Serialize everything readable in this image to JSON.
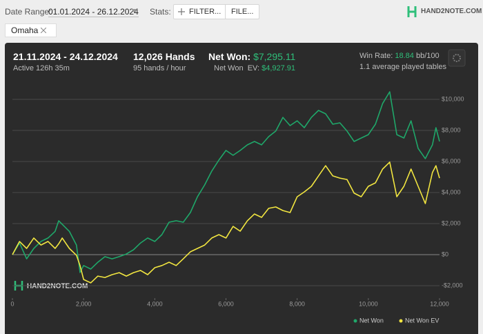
{
  "toolbar": {
    "date_range_label": "Date Range:",
    "date_range": "01.01.2024 - 26.12.2024",
    "stats_label": "Stats:",
    "filter_button": "FILTER...",
    "file_button": "FILE...",
    "logo": "HAND2NOTE.COM"
  },
  "filter_tag": "Omaha",
  "summary": {
    "period": "21.11.2024 - 24.12.2024",
    "active": "Active 126h 35m",
    "hands": "12,026 Hands",
    "hands_rate": "95 hands / hour",
    "net_won_label": "Net Won:",
    "net_won": "$7,295.11",
    "net_won_ev_label": "Net Won  EV:",
    "net_won_ev": "$4,927.91",
    "win_rate_label": "Win Rate:",
    "win_rate": "18.84",
    "win_rate_unit": "bb/100",
    "tables": "1.1 average played tables"
  },
  "chart_data": {
    "type": "line",
    "watermark": "HAND2NOTE.COM",
    "x": [
      0,
      200,
      400,
      600,
      800,
      1000,
      1200,
      1300,
      1400,
      1600,
      1800,
      1900,
      2000,
      2200,
      2400,
      2600,
      2800,
      3000,
      3200,
      3400,
      3600,
      3800,
      4000,
      4200,
      4400,
      4600,
      4800,
      5000,
      5200,
      5400,
      5600,
      5800,
      6000,
      6200,
      6400,
      6600,
      6800,
      7000,
      7200,
      7400,
      7600,
      7800,
      8000,
      8200,
      8400,
      8600,
      8800,
      9000,
      9200,
      9400,
      9600,
      9800,
      10000,
      10200,
      10400,
      10600,
      10800,
      11000,
      11200,
      11400,
      11600,
      11800,
      11900,
      12000
    ],
    "series": [
      {
        "name": "Net Won",
        "color": "#1fa86a",
        "values": [
          0,
          750,
          -270,
          400,
          850,
          1070,
          1500,
          2180,
          1950,
          1500,
          620,
          -1150,
          -700,
          -930,
          -490,
          -130,
          -270,
          -130,
          40,
          310,
          750,
          1070,
          850,
          1290,
          2090,
          2180,
          2090,
          2710,
          3730,
          4490,
          5380,
          6090,
          6710,
          6400,
          6710,
          7070,
          7290,
          7070,
          7600,
          7960,
          8840,
          8310,
          8620,
          8180,
          8840,
          9290,
          9070,
          8400,
          8490,
          7960,
          7290,
          7510,
          7730,
          8400,
          9730,
          10490,
          7730,
          7510,
          8620,
          6840,
          6180,
          7070,
          8180,
          7295.11
        ]
      },
      {
        "name": "Net Won  EV",
        "color": "#f2e640",
        "values": [
          0,
          850,
          400,
          1070,
          620,
          850,
          400,
          700,
          1070,
          400,
          -40,
          -700,
          -1600,
          -1820,
          -1380,
          -1470,
          -1290,
          -1160,
          -1380,
          -1160,
          -1020,
          -1290,
          -840,
          -700,
          -490,
          -700,
          -270,
          180,
          400,
          620,
          1070,
          1290,
          1070,
          1820,
          1510,
          2180,
          2620,
          2400,
          2980,
          3070,
          2840,
          2710,
          3730,
          4040,
          4400,
          5070,
          5730,
          5070,
          4930,
          4840,
          3960,
          3730,
          4400,
          4620,
          5510,
          5960,
          3730,
          4400,
          5510,
          4400,
          3290,
          5290,
          5730,
          4927.91
        ]
      }
    ],
    "xlim": [
      0,
      12000
    ],
    "ylim": [
      -2800,
      11200
    ],
    "xticks": [
      0,
      {
        "value": 2000,
        "label": "2,000"
      },
      {
        "value": 4000,
        "label": "4,000"
      },
      {
        "value": 6000,
        "label": "6,000"
      },
      {
        "value": 8000,
        "label": "8,000"
      },
      {
        "value": 10000,
        "label": "10,000"
      },
      {
        "value": 12000,
        "label": "12,000"
      }
    ],
    "yticks": [
      {
        "value": -2000,
        "label": "-$2,000"
      },
      {
        "value": 0,
        "label": "$0"
      },
      {
        "value": 2000,
        "label": "$2,000"
      },
      {
        "value": 4000,
        "label": "$4,000"
      },
      {
        "value": 6000,
        "label": "$6,000"
      },
      {
        "value": 8000,
        "label": "$8,000"
      },
      {
        "value": 10000,
        "label": "$10,000"
      }
    ],
    "grid": true,
    "legend": "bottom-right"
  }
}
